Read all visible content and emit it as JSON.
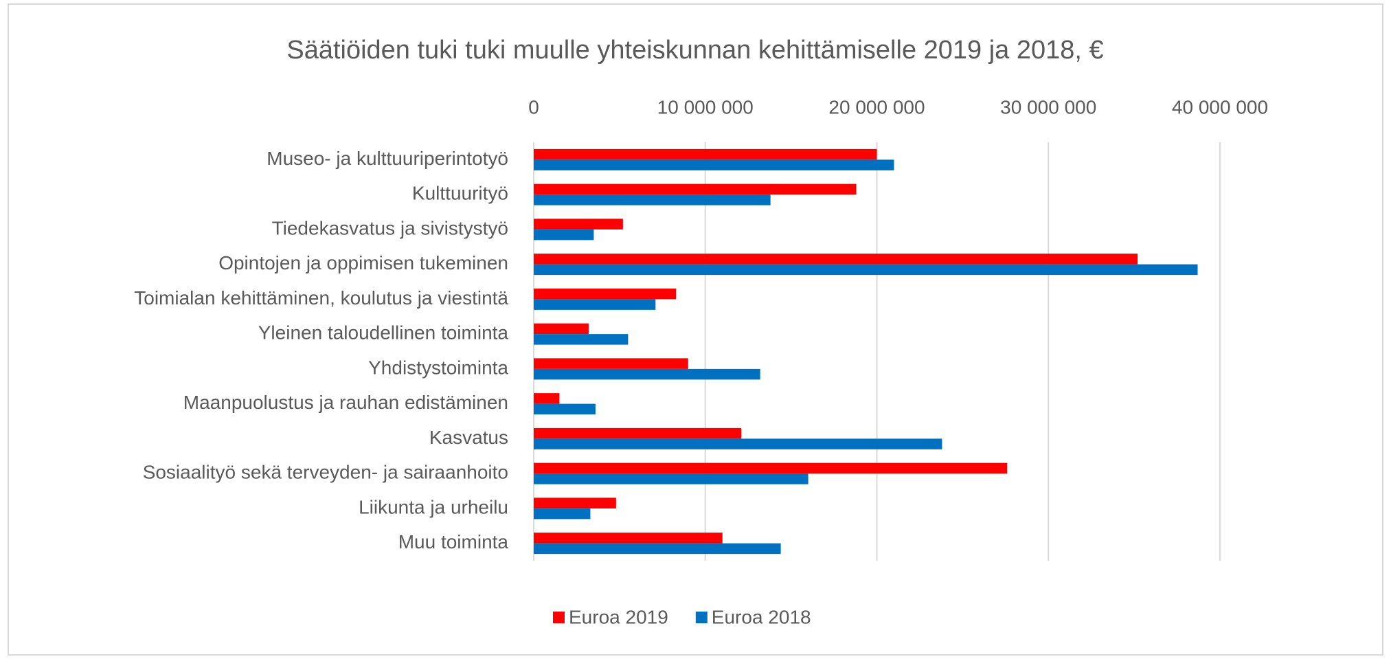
{
  "chart_data": {
    "type": "hbar",
    "title": "Säätiöiden tuki tuki muulle yhteiskunnan kehittämiselle 2019 ja 2018, €",
    "categories": [
      "Museo- ja kulttuuriperintotyö",
      "Kulttuurityö",
      "Tiedekasvatus ja sivistystyö",
      "Opintojen ja oppimisen tukeminen",
      "Toimialan kehittäminen, koulutus ja viestintä",
      "Yleinen taloudellinen toiminta",
      "Yhdistystoiminta",
      "Maanpuolustus ja rauhan edistäminen",
      "Kasvatus",
      "Sosiaalityö sekä terveyden- ja sairaanhoito",
      "Liikunta ja urheilu",
      "Muu toiminta"
    ],
    "series": [
      {
        "name": "Euroa 2019",
        "color": "#ff0000",
        "values": [
          20000000,
          18800000,
          5200000,
          35200000,
          8300000,
          3200000,
          9000000,
          1500000,
          12100000,
          27600000,
          4800000,
          11000000
        ]
      },
      {
        "name": "Euroa 2018",
        "color": "#0070c0",
        "values": [
          21000000,
          13800000,
          3500000,
          38700000,
          7100000,
          5500000,
          13200000,
          3600000,
          23800000,
          16000000,
          3300000,
          14400000
        ]
      }
    ],
    "xlim": [
      0,
      40000000
    ],
    "xticks": [
      0,
      {
        "value": 10000000,
        "label": "10 000 000"
      },
      {
        "value": 20000000,
        "label": "20 000 000"
      },
      {
        "value": 30000000,
        "label": "30 000 000"
      },
      {
        "value": 40000000,
        "label": "40 000 000"
      }
    ],
    "grid": true,
    "legend": "bottom"
  }
}
